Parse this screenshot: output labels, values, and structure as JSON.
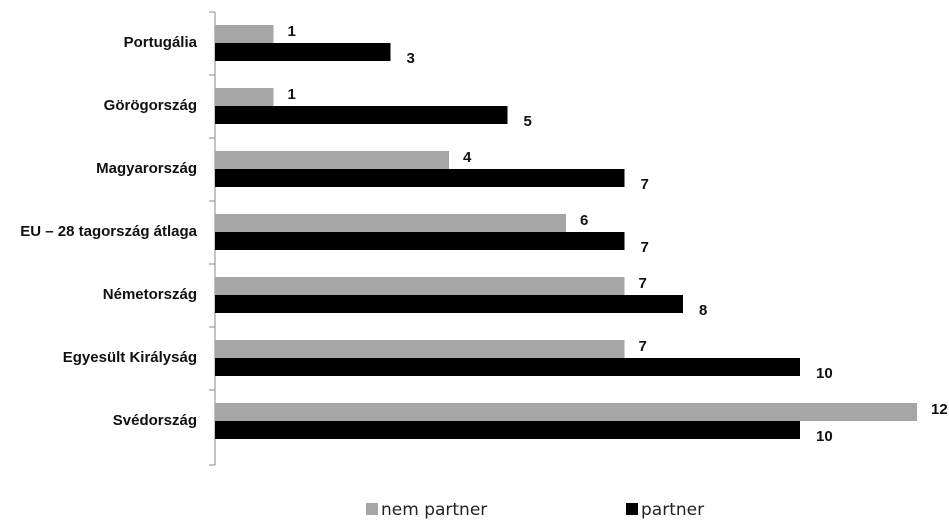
{
  "chart_data": {
    "type": "bar",
    "orientation": "horizontal",
    "categories": [
      "Portugália",
      "Görögország",
      "Magyarország",
      "EU – 28 tagország átlaga",
      "Németország",
      "Egyesült Királyság",
      "Svédország"
    ],
    "series": [
      {
        "name": "nem partner",
        "color": "#a6a6a6",
        "values": [
          1,
          1,
          4,
          6,
          7,
          7,
          12
        ]
      },
      {
        "name": "partner",
        "color": "#000000",
        "values": [
          3,
          5,
          7,
          7,
          8,
          10,
          10
        ]
      }
    ],
    "xlim": [
      0,
      12
    ],
    "grid": false,
    "data_labels": true,
    "legend_position": "bottom"
  }
}
